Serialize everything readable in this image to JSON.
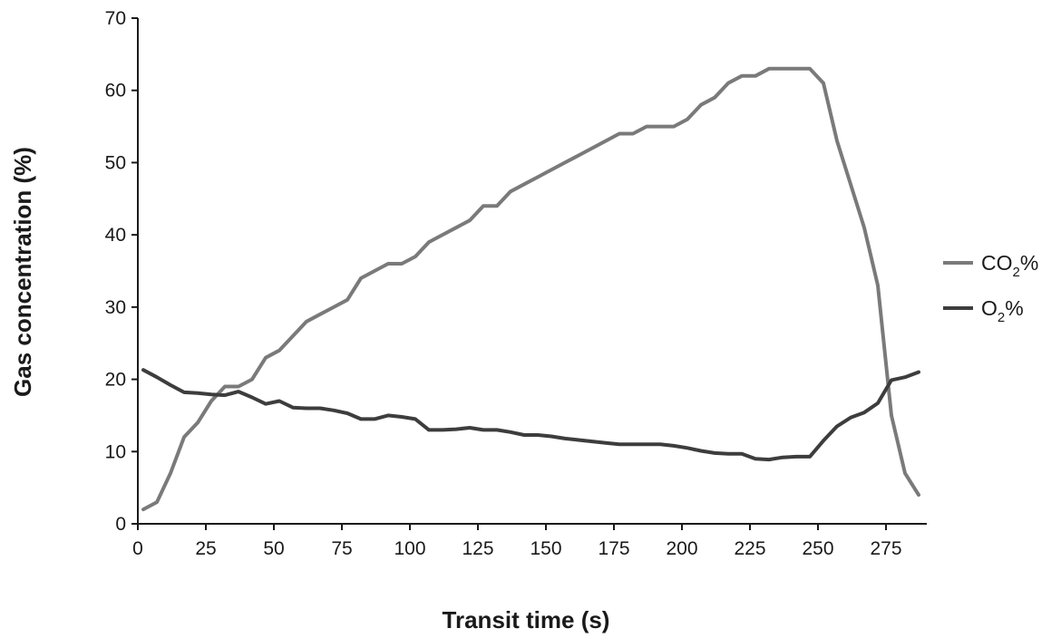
{
  "chart_data": {
    "type": "line",
    "xlabel": "Transit time (s)",
    "ylabel": "Gas concentration (%)",
    "xlim": [
      0,
      290
    ],
    "ylim": [
      0,
      70
    ],
    "x_ticks": [
      "0",
      "25",
      "50",
      "75",
      "100",
      "125",
      "150",
      "175",
      "200",
      "225",
      "250",
      "275"
    ],
    "y_ticks": [
      "0",
      "10",
      "20",
      "30",
      "40",
      "50",
      "60",
      "70"
    ],
    "grid": false,
    "legend_position": "right",
    "series": [
      {
        "name": "CO",
        "name_sub": "2",
        "name_suffix": "%",
        "color": "#7a7a7a",
        "points": [
          [
            2,
            2
          ],
          [
            7,
            3
          ],
          [
            12,
            7
          ],
          [
            17,
            12
          ],
          [
            22,
            14
          ],
          [
            27,
            17
          ],
          [
            32,
            19
          ],
          [
            37,
            19
          ],
          [
            42,
            20
          ],
          [
            47,
            23
          ],
          [
            52,
            24
          ],
          [
            57,
            26
          ],
          [
            62,
            28
          ],
          [
            67,
            29
          ],
          [
            72,
            30
          ],
          [
            77,
            31
          ],
          [
            82,
            34
          ],
          [
            87,
            35
          ],
          [
            92,
            36
          ],
          [
            97,
            36
          ],
          [
            102,
            37
          ],
          [
            107,
            39
          ],
          [
            112,
            40
          ],
          [
            117,
            41
          ],
          [
            122,
            42
          ],
          [
            127,
            44
          ],
          [
            132,
            44
          ],
          [
            137,
            46
          ],
          [
            142,
            47
          ],
          [
            147,
            48
          ],
          [
            152,
            49
          ],
          [
            157,
            50
          ],
          [
            162,
            51
          ],
          [
            167,
            52
          ],
          [
            172,
            53
          ],
          [
            177,
            54
          ],
          [
            182,
            54
          ],
          [
            187,
            55
          ],
          [
            192,
            55
          ],
          [
            197,
            55
          ],
          [
            202,
            56
          ],
          [
            207,
            58
          ],
          [
            212,
            59
          ],
          [
            217,
            61
          ],
          [
            222,
            62
          ],
          [
            227,
            62
          ],
          [
            232,
            63
          ],
          [
            237,
            63
          ],
          [
            242,
            63
          ],
          [
            247,
            63
          ],
          [
            252,
            61
          ],
          [
            257,
            53
          ],
          [
            262,
            47
          ],
          [
            267,
            41
          ],
          [
            272,
            33
          ],
          [
            277,
            15
          ],
          [
            282,
            7
          ],
          [
            287,
            4
          ]
        ]
      },
      {
        "name": "O",
        "name_sub": "2",
        "name_suffix": "%",
        "color": "#3d3d3d",
        "points": [
          [
            2,
            21.3
          ],
          [
            7,
            20.3
          ],
          [
            12,
            19.2
          ],
          [
            17,
            18.2
          ],
          [
            22,
            18.1
          ],
          [
            27,
            17.9
          ],
          [
            32,
            17.8
          ],
          [
            37,
            18.3
          ],
          [
            42,
            17.5
          ],
          [
            47,
            16.6
          ],
          [
            52,
            17
          ],
          [
            57,
            16.1
          ],
          [
            62,
            16
          ],
          [
            67,
            16
          ],
          [
            72,
            15.7
          ],
          [
            77,
            15.3
          ],
          [
            82,
            14.5
          ],
          [
            87,
            14.5
          ],
          [
            92,
            15
          ],
          [
            97,
            14.8
          ],
          [
            102,
            14.5
          ],
          [
            107,
            13
          ],
          [
            112,
            13
          ],
          [
            117,
            13.1
          ],
          [
            122,
            13.3
          ],
          [
            127,
            13
          ],
          [
            132,
            13
          ],
          [
            137,
            12.7
          ],
          [
            142,
            12.3
          ],
          [
            147,
            12.3
          ],
          [
            152,
            12.1
          ],
          [
            157,
            11.8
          ],
          [
            162,
            11.6
          ],
          [
            167,
            11.4
          ],
          [
            172,
            11.2
          ],
          [
            177,
            11
          ],
          [
            182,
            11
          ],
          [
            187,
            11
          ],
          [
            192,
            11
          ],
          [
            197,
            10.8
          ],
          [
            202,
            10.5
          ],
          [
            207,
            10.1
          ],
          [
            212,
            9.8
          ],
          [
            217,
            9.7
          ],
          [
            222,
            9.7
          ],
          [
            227,
            9
          ],
          [
            232,
            8.9
          ],
          [
            237,
            9.2
          ],
          [
            242,
            9.3
          ],
          [
            247,
            9.3
          ],
          [
            252,
            11.5
          ],
          [
            257,
            13.5
          ],
          [
            262,
            14.7
          ],
          [
            267,
            15.4
          ],
          [
            272,
            16.7
          ],
          [
            277,
            19.9
          ],
          [
            282,
            20.3
          ],
          [
            287,
            21
          ]
        ]
      }
    ]
  }
}
